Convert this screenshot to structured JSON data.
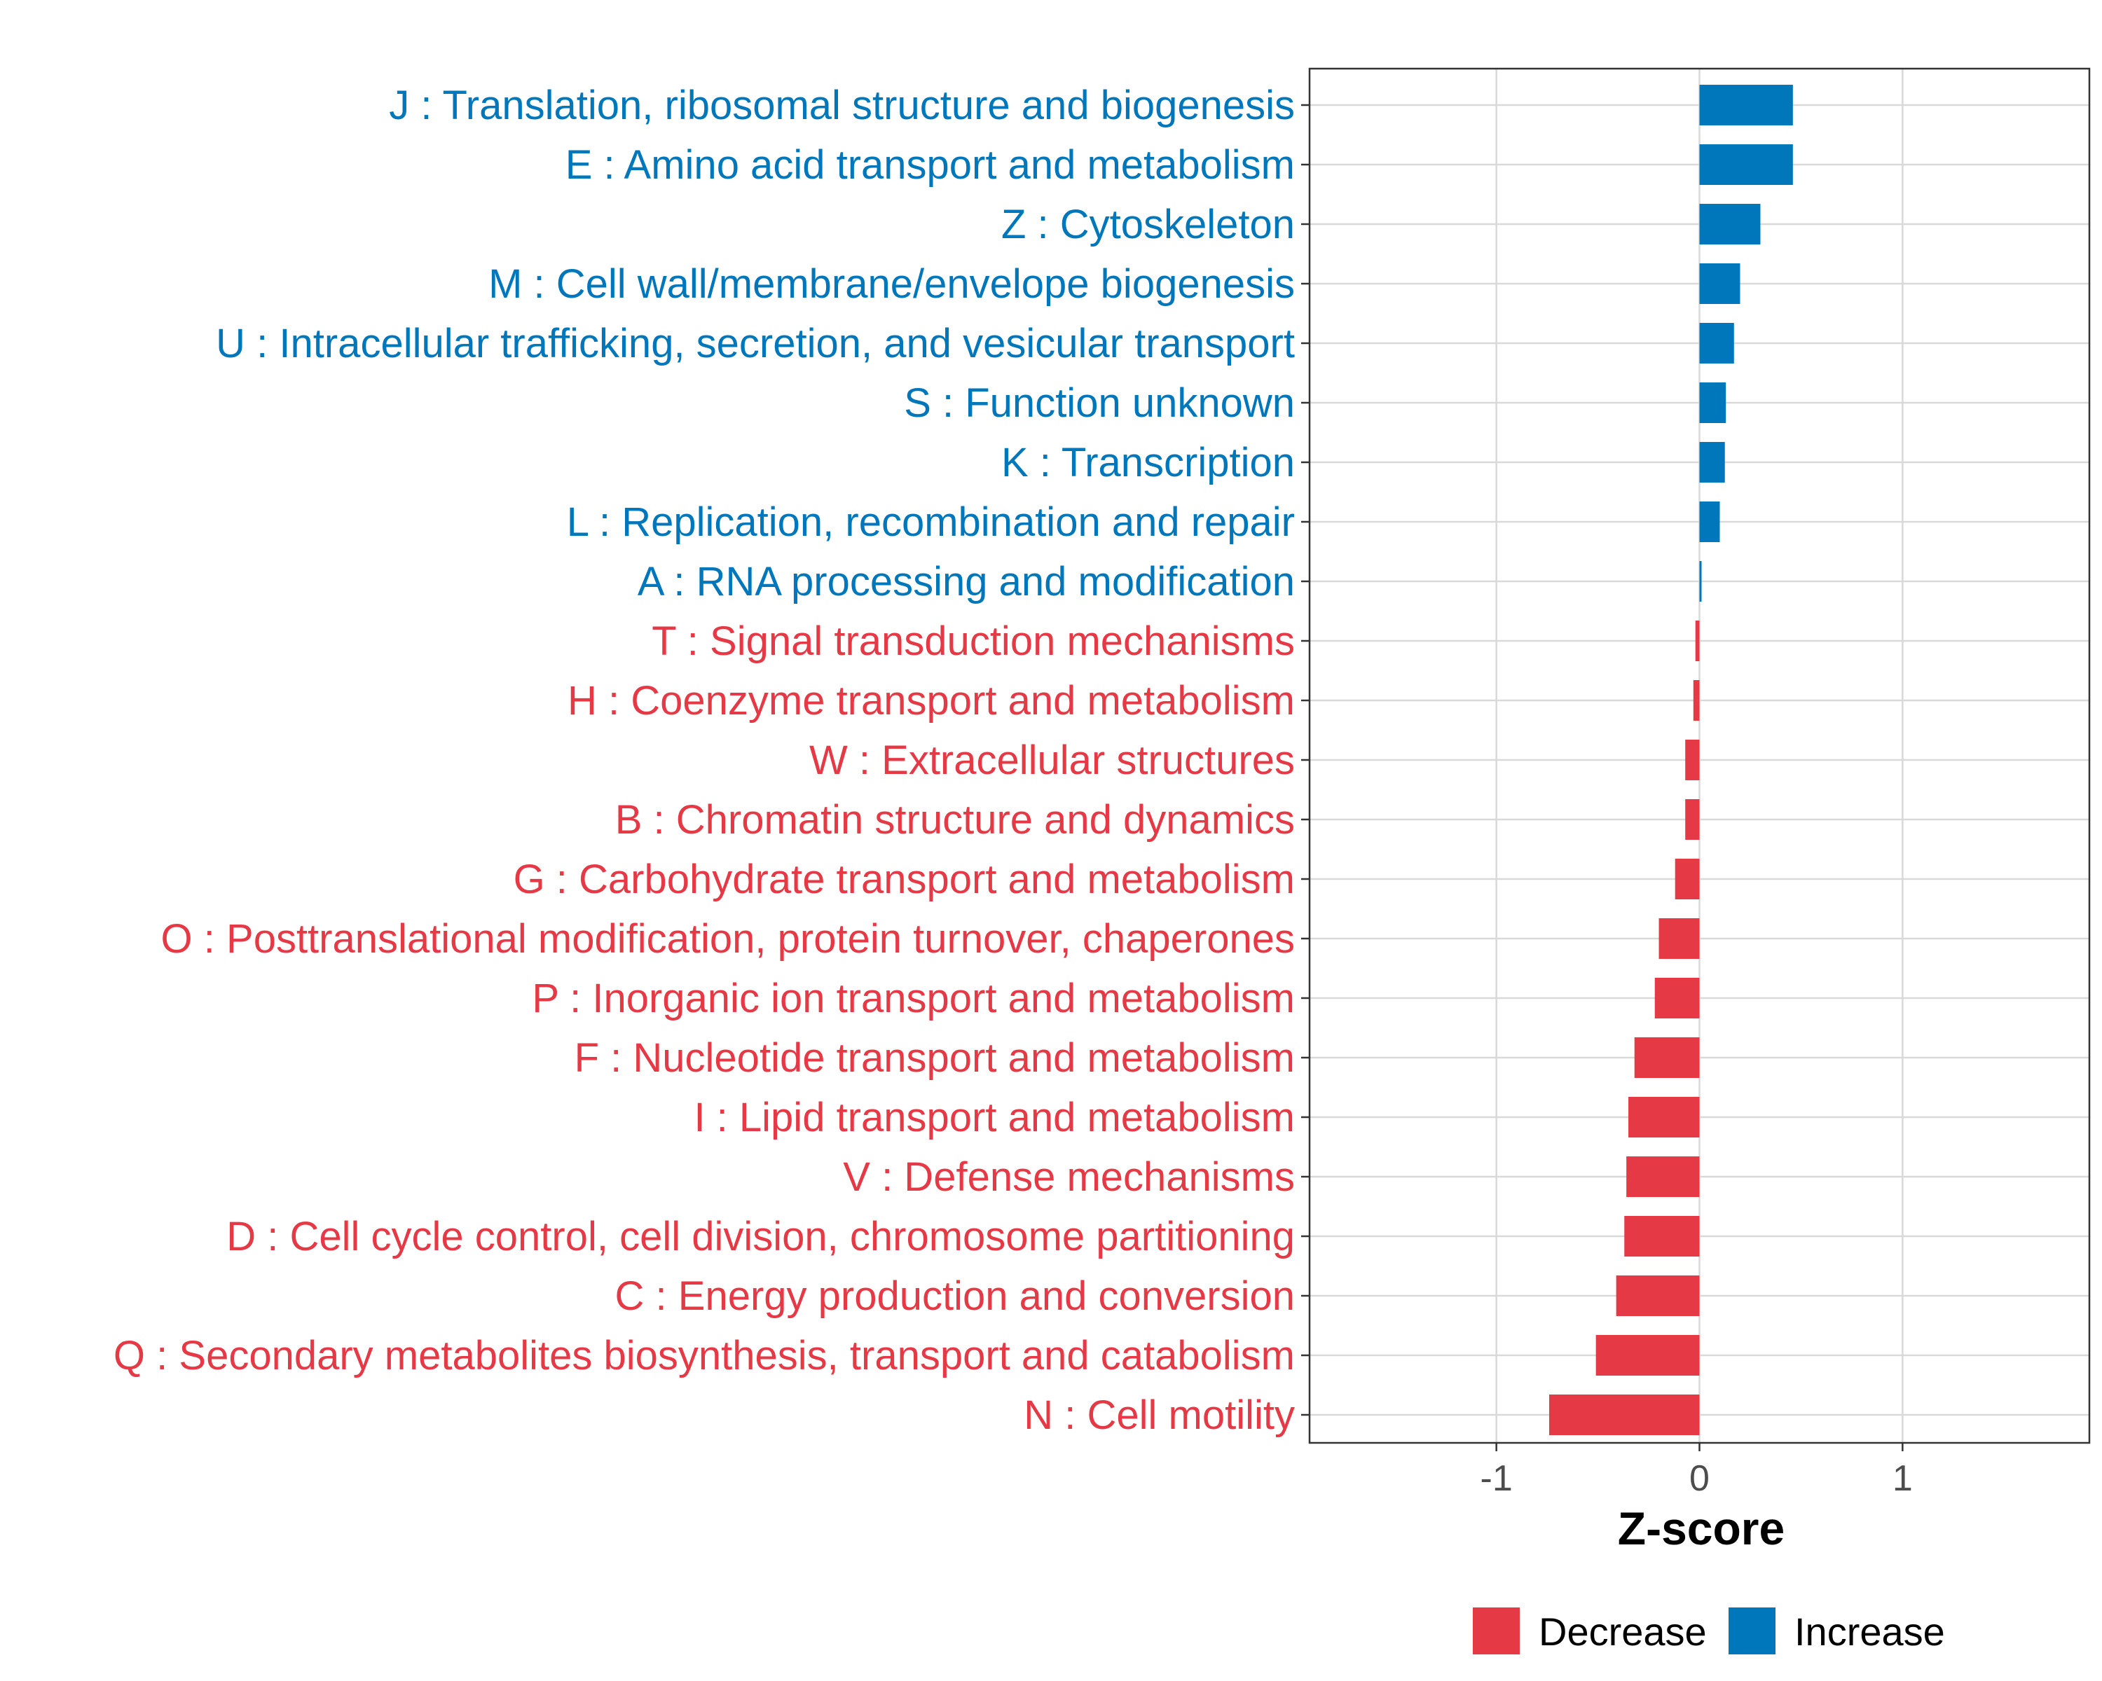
{
  "colors": {
    "increase": "#0077BB",
    "decrease": "#E63946",
    "grid": "#D9D9D9",
    "panel_border": "#333333",
    "tick_text": "#4D4D4D"
  },
  "chart_data": {
    "type": "bar",
    "orientation": "horizontal",
    "xlabel": "Z-score",
    "ylabel": "",
    "xlim": [
      -1.92,
      1.92
    ],
    "xticks": [
      {
        "value": -1,
        "label": "-1"
      },
      {
        "value": 0,
        "label": "0"
      },
      {
        "value": 1,
        "label": "1"
      }
    ],
    "grid": true,
    "legend": {
      "placement": "bottom",
      "entries": [
        {
          "name": "Decrease",
          "color_key": "decrease"
        },
        {
          "name": "Increase",
          "color_key": "increase"
        }
      ]
    },
    "categories": [
      "J : Translation, ribosomal structure and biogenesis",
      "E : Amino acid transport and metabolism",
      "Z : Cytoskeleton",
      "M : Cell wall/membrane/envelope biogenesis",
      "U : Intracellular trafficking, secretion, and vesicular transport",
      "S : Function unknown",
      "K : Transcription",
      "L : Replication, recombination and repair",
      "A : RNA processing and modification",
      "T : Signal transduction mechanisms",
      "H : Coenzyme transport and metabolism",
      "W : Extracellular structures",
      "B : Chromatin structure and dynamics",
      "G : Carbohydrate transport and metabolism",
      "O : Posttranslational modification, protein turnover, chaperones",
      "P : Inorganic ion transport and metabolism",
      "F : Nucleotide transport and metabolism",
      "I : Lipid transport and metabolism",
      "V : Defense mechanisms",
      "D : Cell cycle control, cell division, chromosome partitioning",
      "C : Energy production and conversion",
      "Q : Secondary metabolites biosynthesis, transport and catabolism",
      "N : Cell motility"
    ],
    "values": [
      0.46,
      0.46,
      0.3,
      0.2,
      0.17,
      0.13,
      0.125,
      0.1,
      0.005,
      -0.02,
      -0.03,
      -0.07,
      -0.07,
      -0.12,
      -0.2,
      -0.22,
      -0.32,
      -0.35,
      -0.36,
      -0.37,
      -0.41,
      -0.51,
      -0.74
    ],
    "groups": [
      "Increase",
      "Increase",
      "Increase",
      "Increase",
      "Increase",
      "Increase",
      "Increase",
      "Increase",
      "Increase",
      "Decrease",
      "Decrease",
      "Decrease",
      "Decrease",
      "Decrease",
      "Decrease",
      "Decrease",
      "Decrease",
      "Decrease",
      "Decrease",
      "Decrease",
      "Decrease",
      "Decrease",
      "Decrease"
    ]
  }
}
